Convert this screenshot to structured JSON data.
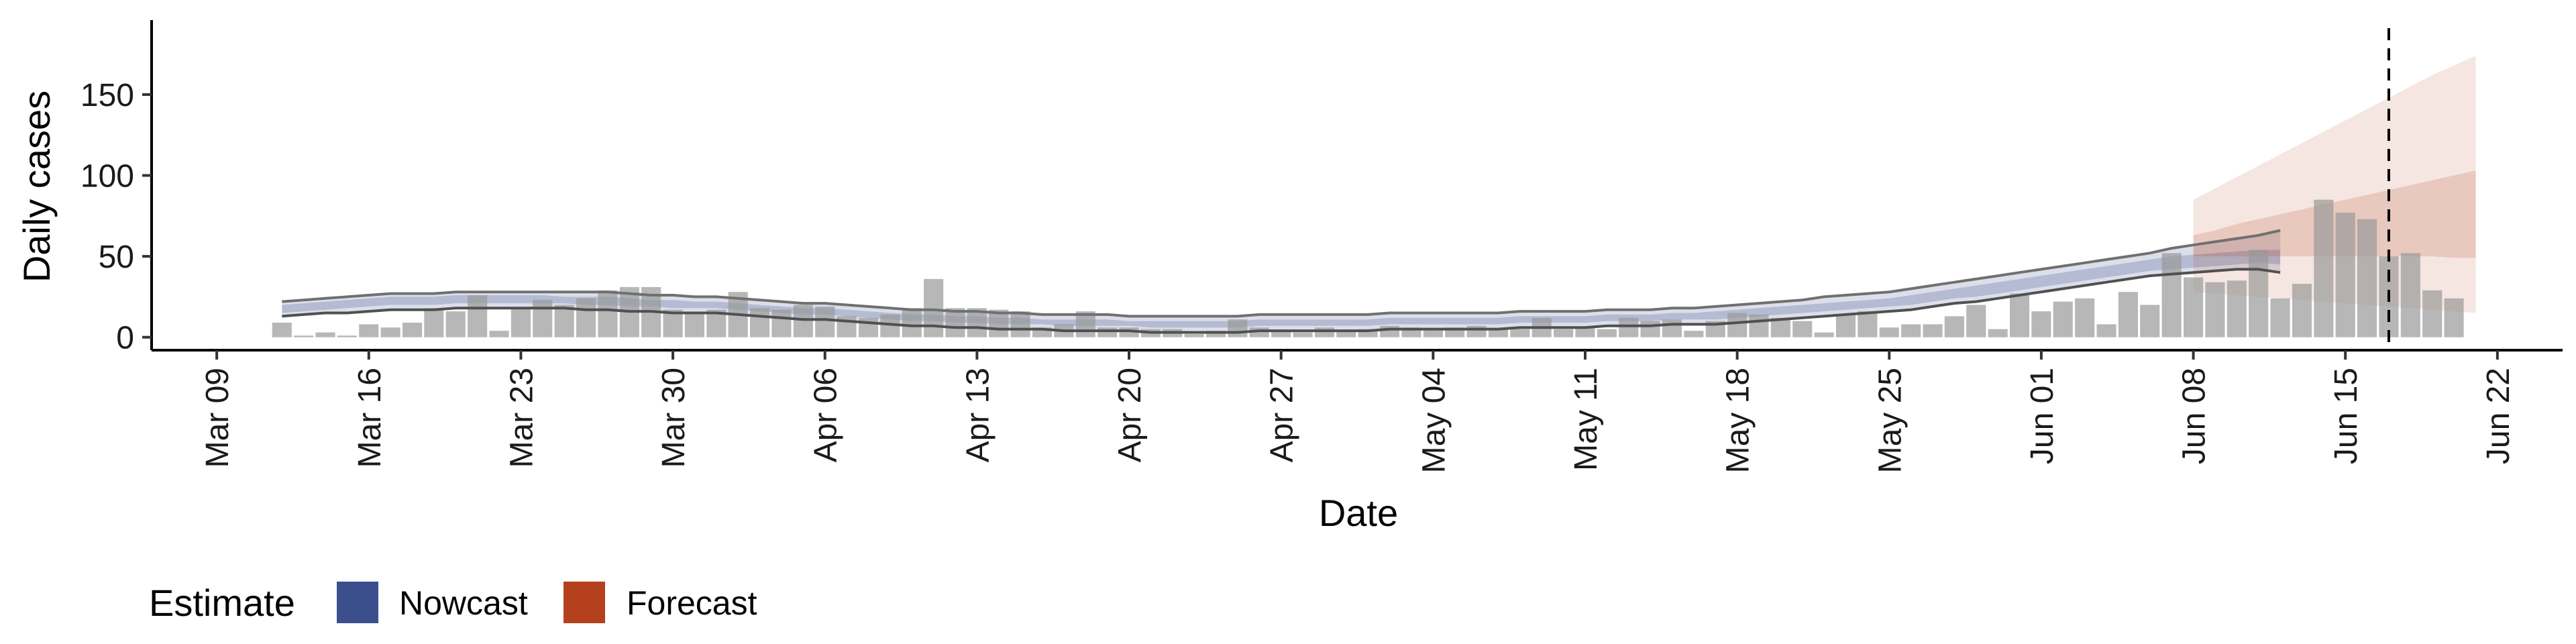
{
  "chart_data": {
    "type": "bar",
    "xlabel": "Date",
    "ylabel": "Daily cases",
    "x_range": [
      "2020-03-06",
      "2020-06-25"
    ],
    "ylim": [
      -8,
      196
    ],
    "y_ticks": [
      0,
      50,
      100,
      150
    ],
    "x_ticks": [
      {
        "date": "2020-03-09",
        "label": "Mar 09"
      },
      {
        "date": "2020-03-16",
        "label": "Mar 16"
      },
      {
        "date": "2020-03-23",
        "label": "Mar 23"
      },
      {
        "date": "2020-03-30",
        "label": "Mar 30"
      },
      {
        "date": "2020-04-06",
        "label": "Apr 06"
      },
      {
        "date": "2020-04-13",
        "label": "Apr 13"
      },
      {
        "date": "2020-04-20",
        "label": "Apr 20"
      },
      {
        "date": "2020-04-27",
        "label": "Apr 27"
      },
      {
        "date": "2020-05-04",
        "label": "May 04"
      },
      {
        "date": "2020-05-11",
        "label": "May 11"
      },
      {
        "date": "2020-05-18",
        "label": "May 18"
      },
      {
        "date": "2020-05-25",
        "label": "May 25"
      },
      {
        "date": "2020-06-01",
        "label": "Jun 01"
      },
      {
        "date": "2020-06-08",
        "label": "Jun 08"
      },
      {
        "date": "2020-06-15",
        "label": "Jun 15"
      },
      {
        "date": "2020-06-22",
        "label": "Jun 22"
      }
    ],
    "bars": {
      "start_date": "2020-03-12",
      "values": [
        9,
        1,
        3,
        1,
        8,
        6,
        9,
        18,
        16,
        26,
        4,
        18,
        23,
        20,
        24,
        29,
        31,
        31,
        17,
        15,
        17,
        28,
        18,
        17,
        20,
        19,
        13,
        12,
        14,
        18,
        36,
        18,
        18,
        17,
        16,
        6,
        8,
        16,
        6,
        6,
        5,
        5,
        2,
        4,
        11,
        6,
        4,
        3,
        6,
        4,
        5,
        7,
        6,
        5,
        6,
        7,
        5,
        5,
        12,
        5,
        6,
        5,
        12,
        10,
        11,
        4,
        10,
        15,
        14,
        12,
        10,
        3,
        14,
        16,
        6,
        8,
        8,
        13,
        20,
        5,
        27,
        16,
        22,
        24,
        8,
        28,
        20,
        52,
        37,
        34,
        35,
        54,
        24,
        33,
        85,
        77,
        73,
        50,
        52,
        29,
        24
      ],
      "color": "#999999",
      "opacity": 0.7
    },
    "nowcast": {
      "name": "Nowcast",
      "color": "#3b4f8c",
      "start_date": "2020-03-12",
      "inner_lower": [
        15,
        16,
        17,
        18,
        19,
        20,
        20,
        20,
        21,
        21,
        21,
        21,
        21,
        21,
        20,
        20,
        19,
        19,
        18,
        18,
        18,
        17,
        16,
        15,
        14,
        14,
        13,
        12,
        11,
        10,
        10,
        9,
        9,
        8,
        8,
        8,
        7,
        7,
        7,
        7,
        6,
        6,
        6,
        6,
        6,
        7,
        7,
        7,
        7,
        7,
        7,
        8,
        8,
        8,
        8,
        8,
        8,
        9,
        9,
        9,
        9,
        10,
        10,
        10,
        11,
        11,
        11,
        12,
        13,
        14,
        15,
        16,
        17,
        18,
        19,
        20,
        22,
        24,
        25,
        27,
        29,
        31,
        33,
        35,
        37,
        39,
        41,
        42,
        43,
        44,
        45,
        46,
        45
      ],
      "inner_upper": [
        20,
        21,
        22,
        23,
        24,
        25,
        25,
        25,
        26,
        26,
        26,
        26,
        26,
        25,
        25,
        25,
        24,
        23,
        23,
        22,
        22,
        21,
        20,
        19,
        18,
        18,
        17,
        16,
        15,
        14,
        14,
        13,
        13,
        12,
        12,
        11,
        11,
        11,
        11,
        10,
        10,
        10,
        10,
        10,
        10,
        11,
        11,
        11,
        11,
        11,
        11,
        12,
        12,
        12,
        12,
        12,
        12,
        13,
        13,
        13,
        13,
        14,
        14,
        14,
        15,
        15,
        16,
        17,
        18,
        19,
        20,
        21,
        22,
        23,
        24,
        26,
        28,
        30,
        32,
        34,
        36,
        38,
        40,
        42,
        44,
        46,
        48,
        50,
        51,
        52,
        53,
        54,
        54
      ],
      "outer_lower": [
        13,
        14,
        15,
        15,
        16,
        17,
        17,
        17,
        18,
        18,
        18,
        18,
        18,
        18,
        17,
        17,
        16,
        16,
        15,
        15,
        15,
        14,
        13,
        12,
        11,
        11,
        10,
        9,
        8,
        7,
        7,
        6,
        6,
        5,
        5,
        5,
        4,
        4,
        4,
        4,
        3,
        3,
        3,
        3,
        3,
        4,
        4,
        4,
        4,
        4,
        4,
        5,
        5,
        5,
        5,
        5,
        5,
        6,
        6,
        6,
        6,
        7,
        7,
        7,
        8,
        8,
        8,
        9,
        10,
        11,
        12,
        13,
        14,
        15,
        16,
        17,
        19,
        21,
        22,
        24,
        26,
        28,
        30,
        32,
        34,
        36,
        38,
        39,
        40,
        41,
        42,
        42,
        40
      ],
      "outer_upper": [
        22,
        23,
        24,
        25,
        26,
        27,
        27,
        27,
        28,
        28,
        28,
        28,
        28,
        28,
        28,
        28,
        27,
        26,
        26,
        25,
        25,
        24,
        23,
        22,
        21,
        21,
        20,
        19,
        18,
        17,
        17,
        16,
        16,
        15,
        15,
        14,
        14,
        14,
        14,
        13,
        13,
        13,
        13,
        13,
        13,
        14,
        14,
        14,
        14,
        14,
        14,
        15,
        15,
        15,
        15,
        15,
        15,
        16,
        16,
        16,
        16,
        17,
        17,
        17,
        18,
        18,
        19,
        20,
        21,
        22,
        23,
        25,
        26,
        27,
        28,
        30,
        32,
        34,
        36,
        38,
        40,
        42,
        44,
        46,
        48,
        50,
        52,
        55,
        57,
        59,
        61,
        63,
        66
      ]
    },
    "forecast": {
      "name": "Forecast",
      "color": "#b5401e",
      "start_date": "2020-06-08",
      "inner_lower": [
        50,
        50,
        50,
        50,
        50,
        50,
        50,
        50,
        50,
        50,
        50,
        50,
        49,
        49
      ],
      "inner_upper": [
        63,
        66,
        70,
        73,
        76,
        79,
        82,
        85,
        88,
        91,
        94,
        97,
        100,
        103
      ],
      "outer_lower": [
        28,
        27,
        26,
        25,
        24,
        23,
        22,
        21,
        20,
        19,
        18,
        17,
        16,
        15
      ],
      "outer_upper": [
        85,
        92,
        99,
        106,
        113,
        120,
        127,
        134,
        141,
        148,
        155,
        162,
        168,
        174
      ]
    },
    "vline_date": "2020-06-17",
    "legend": {
      "title": "Estimate",
      "items": [
        {
          "label": "Nowcast",
          "color": "#3b4f8c"
        },
        {
          "label": "Forecast",
          "color": "#b5401e"
        }
      ],
      "placement": "bottom-left"
    },
    "grid": false
  }
}
